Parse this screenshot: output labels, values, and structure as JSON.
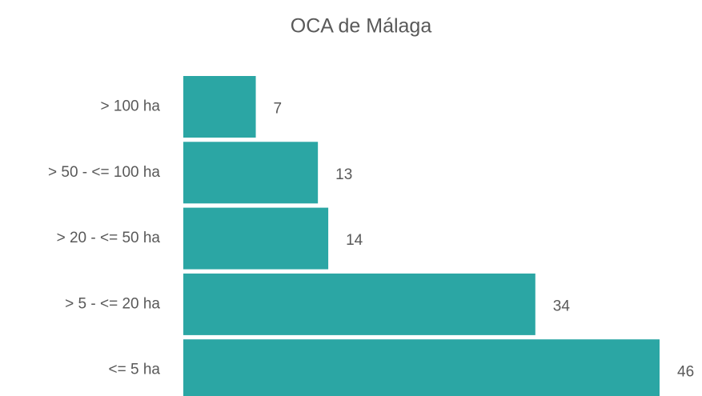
{
  "chart_data": {
    "type": "bar",
    "orientation": "horizontal",
    "title": "OCA de Málaga",
    "categories": [
      "> 100 ha",
      "> 50 - <= 100 ha",
      "> 20 - <= 50 ha",
      "> 5 - <= 20 ha",
      "<= 5 ha"
    ],
    "values": [
      7,
      13,
      14,
      34,
      46
    ],
    "color": "#2ba6a4"
  }
}
